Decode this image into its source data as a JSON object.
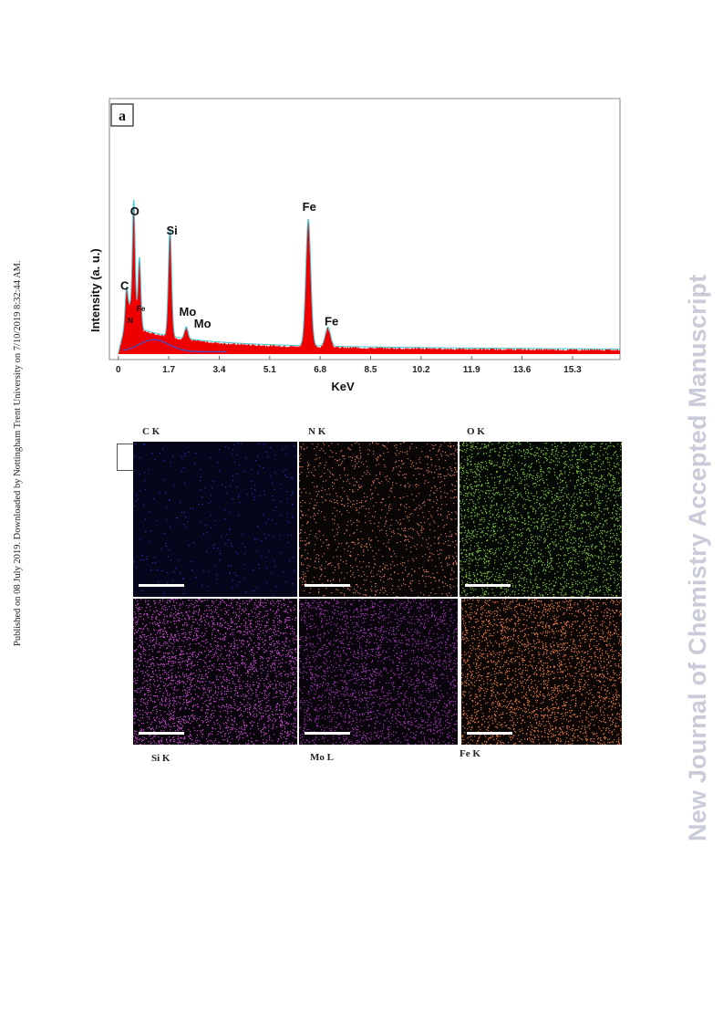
{
  "side_note": "Published on 08 July 2019. Downloaded by Nottingham Trent University on 7/10/2019 8:32:44 AM.",
  "watermark": "New Journal of Chemistry Accepted Manuscript",
  "panel_label": "a",
  "chart_data": {
    "type": "line",
    "title": "",
    "xlabel": "KeV",
    "ylabel": "Intensity (a. u.)",
    "x_ticks": [
      "0",
      "1.7",
      "3.4",
      "5.1",
      "6.8",
      "8.5",
      "10.2",
      "11.9",
      "13.6",
      "15.3"
    ],
    "xlim": [
      -0.3,
      16.9
    ],
    "ylim": [
      0,
      1
    ],
    "series_colors": {
      "fill": "#ee0000",
      "outline": "#44c8d8",
      "background": "#4a4ac0"
    },
    "peaks": [
      {
        "element": "C",
        "energy": 0.28,
        "height": 0.15
      },
      {
        "element": "N",
        "energy": 0.39,
        "height": 0.07
      },
      {
        "element": "O",
        "energy": 0.52,
        "height": 0.53
      },
      {
        "element": "Fe",
        "energy": 0.71,
        "height": 0.3
      },
      {
        "element": "Si",
        "energy": 1.74,
        "height": 0.45
      },
      {
        "element": "Mo",
        "energy": 2.29,
        "height": 0.05
      },
      {
        "element": "Fe",
        "energy": 6.4,
        "height": 0.53
      },
      {
        "element": "Fe",
        "energy": 7.06,
        "height": 0.08
      }
    ],
    "peak_labels": [
      {
        "text": "O",
        "energy": 0.4,
        "height": 0.58
      },
      {
        "text": "Si",
        "energy": 1.62,
        "height": 0.5
      },
      {
        "text": "C",
        "energy": 0.07,
        "height": 0.27
      },
      {
        "text": "N",
        "energy": 0.32,
        "height": 0.13
      },
      {
        "text": "Fe",
        "energy": 0.62,
        "height": 0.18
      },
      {
        "text": "Mo",
        "energy": 2.05,
        "height": 0.16
      },
      {
        "text": "Mo",
        "energy": 2.55,
        "height": 0.11
      },
      {
        "text": "Fe",
        "energy": 6.2,
        "height": 0.6
      },
      {
        "text": "Fe",
        "energy": 6.95,
        "height": 0.12
      }
    ]
  },
  "maps": [
    {
      "label": "C K",
      "color": "#3232b4",
      "bg": "#05051c",
      "density": 0.08
    },
    {
      "label": "N K",
      "color": "#d47a5a",
      "bg": "#0a0606",
      "density": 0.35
    },
    {
      "label": "O K",
      "color": "#7fbf3f",
      "bg": "#050905",
      "density": 0.75
    },
    {
      "label": "Si K",
      "color": "#c050c8",
      "bg": "#0a040c",
      "density": 0.85
    },
    {
      "label": "Mo L",
      "color": "#9a3cae",
      "bg": "#0a040c",
      "density": 0.7
    },
    {
      "label": "Fe K",
      "color": "#e07a4a",
      "bg": "#0c0604",
      "density": 0.8
    }
  ]
}
